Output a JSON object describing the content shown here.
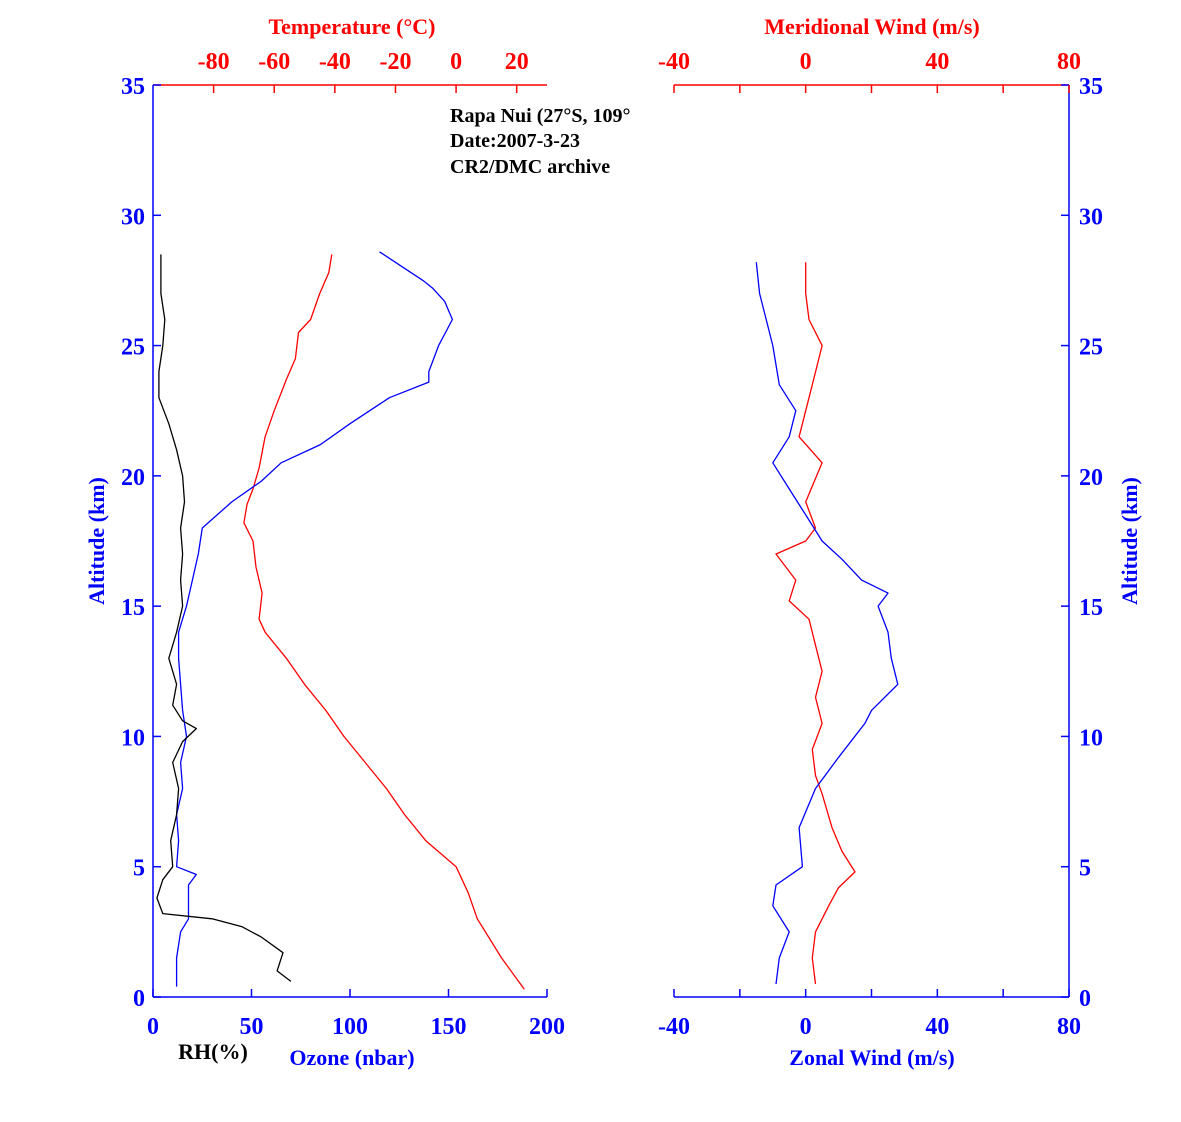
{
  "colors": {
    "blue": "#0000ff",
    "red": "#ff0000",
    "black": "#000000"
  },
  "annotation": {
    "line1": "Rapa Nui (27°S, 109°",
    "line2": "Date:2007-3-23",
    "line3": "CR2/DMC archive"
  },
  "chart_data": [
    {
      "type": "line",
      "panel": "left",
      "ylabel": "Altitude (km)",
      "ylim": [
        0,
        35
      ],
      "yticks": [
        "0",
        "5",
        "10",
        "15",
        "20",
        "25",
        "30",
        "35"
      ],
      "x_top": {
        "label": "Temperature (°C)",
        "lim": [
          -100,
          30
        ],
        "ticks": [
          "-80",
          "-60",
          "-40",
          "-20",
          "0",
          "20"
        ]
      },
      "x_bottom": {
        "label": "Ozone (nbar)",
        "lim": [
          0,
          200
        ],
        "ticks": [
          "0",
          "50",
          "100",
          "150",
          "200"
        ],
        "extra_label": "RH(%)"
      },
      "series": [
        {
          "quantity": "Temperature",
          "axis": "top",
          "color": "#ff0000",
          "points": [
            [
              22.5,
              0.3
            ],
            [
              15,
              1.5
            ],
            [
              7,
              3
            ],
            [
              4,
              4
            ],
            [
              0,
              5
            ],
            [
              -10,
              6
            ],
            [
              -17,
              7
            ],
            [
              -23,
              8
            ],
            [
              -30,
              9
            ],
            [
              -37,
              10
            ],
            [
              -43,
              11
            ],
            [
              -50,
              12
            ],
            [
              -56,
              13
            ],
            [
              -63,
              14
            ],
            [
              -65,
              14.5
            ],
            [
              -64,
              15.5
            ],
            [
              -66,
              16.5
            ],
            [
              -67,
              17.5
            ],
            [
              -70,
              18.2
            ],
            [
              -69,
              18.9
            ],
            [
              -67,
              19.5
            ],
            [
              -65,
              20.3
            ],
            [
              -63,
              21.5
            ],
            [
              -60,
              22.5
            ],
            [
              -56,
              23.7
            ],
            [
              -53,
              24.5
            ],
            [
              -52,
              25.5
            ],
            [
              -48,
              26
            ],
            [
              -45,
              27
            ],
            [
              -42,
              27.8
            ],
            [
              -41,
              28.5
            ]
          ]
        },
        {
          "quantity": "Ozone",
          "axis": "bottom",
          "color": "#0000ff",
          "points": [
            [
              12,
              0.4
            ],
            [
              12,
              1.5
            ],
            [
              14,
              2.5
            ],
            [
              18,
              3
            ],
            [
              18,
              4.3
            ],
            [
              22,
              4.7
            ],
            [
              12,
              5
            ],
            [
              13,
              6
            ],
            [
              12,
              7
            ],
            [
              15,
              8
            ],
            [
              14,
              9
            ],
            [
              17,
              10
            ],
            [
              15,
              11
            ],
            [
              14,
              12
            ],
            [
              13,
              13
            ],
            [
              13,
              14
            ],
            [
              17,
              15
            ],
            [
              20,
              16
            ],
            [
              23,
              17
            ],
            [
              25,
              18
            ],
            [
              40,
              19
            ],
            [
              55,
              19.8
            ],
            [
              65,
              20.5
            ],
            [
              85,
              21.2
            ],
            [
              100,
              22
            ],
            [
              120,
              23
            ],
            [
              140,
              23.6
            ],
            [
              140,
              24
            ],
            [
              145,
              25
            ],
            [
              152,
              26
            ],
            [
              148,
              26.7
            ],
            [
              142,
              27.2
            ],
            [
              137,
              27.5
            ],
            [
              127,
              28
            ],
            [
              115,
              28.6
            ]
          ]
        },
        {
          "quantity": "RH",
          "axis": "bottom",
          "color": "#000000",
          "points": [
            [
              70,
              0.6
            ],
            [
              63,
              1
            ],
            [
              66,
              1.7
            ],
            [
              55,
              2.3
            ],
            [
              45,
              2.7
            ],
            [
              30,
              3
            ],
            [
              5,
              3.2
            ],
            [
              2,
              3.8
            ],
            [
              5,
              4.5
            ],
            [
              10,
              5
            ],
            [
              9,
              6
            ],
            [
              12,
              7
            ],
            [
              13,
              8
            ],
            [
              10,
              9
            ],
            [
              15,
              9.8
            ],
            [
              22,
              10.3
            ],
            [
              15,
              10.6
            ],
            [
              10,
              11.2
            ],
            [
              12,
              12
            ],
            [
              8,
              13
            ],
            [
              12,
              14
            ],
            [
              15,
              15
            ],
            [
              14,
              16
            ],
            [
              15,
              17
            ],
            [
              14,
              18
            ],
            [
              16,
              19
            ],
            [
              15,
              20
            ],
            [
              12,
              21
            ],
            [
              8,
              22
            ],
            [
              3,
              23
            ],
            [
              3,
              24
            ],
            [
              5,
              25
            ],
            [
              6,
              26
            ],
            [
              4,
              27
            ],
            [
              4,
              28.5
            ]
          ]
        }
      ]
    },
    {
      "type": "line",
      "panel": "right",
      "ylabel": "Altitude (km)",
      "ylim": [
        0,
        35
      ],
      "yticks": [
        "0",
        "5",
        "10",
        "15",
        "20",
        "25",
        "30",
        "35"
      ],
      "x_top": {
        "label": "Meridional Wind (m/s)",
        "lim": [
          -40,
          80
        ],
        "ticks": [
          "-40",
          "0",
          "40",
          "80"
        ]
      },
      "x_bottom": {
        "label": "Zonal Wind (m/s)",
        "lim": [
          -40,
          80
        ],
        "ticks": [
          "-40",
          "0",
          "40",
          "80"
        ]
      },
      "series": [
        {
          "quantity": "Meridional Wind",
          "axis": "top",
          "color": "#ff0000",
          "points": [
            [
              3,
              0.5
            ],
            [
              2,
              1.5
            ],
            [
              3,
              2.5
            ],
            [
              7,
              3.5
            ],
            [
              10,
              4.2
            ],
            [
              15,
              4.8
            ],
            [
              11,
              5.6
            ],
            [
              8,
              6.5
            ],
            [
              5,
              7.8
            ],
            [
              3,
              8.5
            ],
            [
              2,
              9.5
            ],
            [
              5,
              10.5
            ],
            [
              3,
              11.5
            ],
            [
              5,
              12.5
            ],
            [
              3,
              13.5
            ],
            [
              1,
              14.5
            ],
            [
              -5,
              15.2
            ],
            [
              -3,
              16
            ],
            [
              -9,
              17
            ],
            [
              0,
              17.5
            ],
            [
              3,
              18
            ],
            [
              0,
              19
            ],
            [
              5,
              20.5
            ],
            [
              -2,
              21.5
            ],
            [
              0,
              22.5
            ],
            [
              2,
              23.5
            ],
            [
              5,
              25
            ],
            [
              1,
              26
            ],
            [
              0,
              27
            ],
            [
              0,
              28.2
            ]
          ]
        },
        {
          "quantity": "Zonal Wind",
          "axis": "bottom",
          "color": "#0000ff",
          "points": [
            [
              -9,
              0.5
            ],
            [
              -8,
              1.5
            ],
            [
              -5,
              2.5
            ],
            [
              -10,
              3.5
            ],
            [
              -9,
              4.3
            ],
            [
              -1,
              5
            ],
            [
              -2,
              6.5
            ],
            [
              3,
              8
            ],
            [
              10,
              9.2
            ],
            [
              18,
              10.5
            ],
            [
              20,
              11
            ],
            [
              28,
              12
            ],
            [
              26,
              13
            ],
            [
              25,
              14
            ],
            [
              22,
              15
            ],
            [
              25,
              15.5
            ],
            [
              17,
              16
            ],
            [
              11,
              16.8
            ],
            [
              5,
              17.5
            ],
            [
              0,
              18.5
            ],
            [
              -5,
              19.5
            ],
            [
              -10,
              20.5
            ],
            [
              -5,
              21.5
            ],
            [
              -3,
              22.5
            ],
            [
              -8,
              23.5
            ],
            [
              -10,
              25
            ],
            [
              -12,
              26
            ],
            [
              -14,
              27
            ],
            [
              -15,
              28.2
            ]
          ]
        }
      ]
    }
  ]
}
